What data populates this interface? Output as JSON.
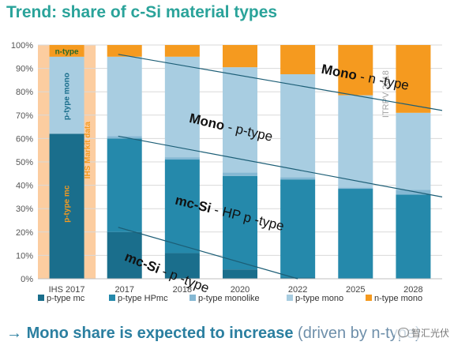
{
  "title": "Trend: share of c-Si material types",
  "footer": {
    "arrow": "→",
    "text_main": "Mono share is expected to increase",
    "text_paren": "(driven by n-type)"
  },
  "watermark": "智汇光伏",
  "colors": {
    "p-type mc": "#1a6e8c",
    "p-type HPmc": "#2589ab",
    "p-type monolike": "#85b8d3",
    "p-type mono": "#a8cde1",
    "n-type mono": "#f59a1f",
    "ihs_background": "#fccda0",
    "trend_line": "#1c5e76",
    "title": "#2aa39a"
  },
  "chart_data": {
    "type": "bar",
    "stacked": true,
    "categories": [
      "IHS 2017",
      "2017",
      "2018",
      "2020",
      "2022",
      "2025",
      "2028"
    ],
    "series": [
      {
        "name": "p-type mc",
        "values": [
          62,
          20,
          11,
          4,
          0.5,
          0,
          0
        ]
      },
      {
        "name": "p-type HPmc",
        "values": [
          0,
          40,
          40,
          40,
          42,
          38.5,
          36
        ]
      },
      {
        "name": "p-type monolike",
        "values": [
          0,
          1,
          1,
          1.5,
          1,
          0.5,
          2
        ]
      },
      {
        "name": "p-type mono",
        "values": [
          33,
          34,
          43,
          45,
          44,
          39.5,
          33
        ]
      },
      {
        "name": "n-type mono",
        "values": [
          5,
          5,
          5,
          9.5,
          12.5,
          21.5,
          29
        ]
      }
    ],
    "y_ticks": [
      "0%",
      "10%",
      "20%",
      "30%",
      "40%",
      "50%",
      "60%",
      "70%",
      "80%",
      "90%",
      "100%"
    ],
    "ylim": [
      0,
      100
    ],
    "grid": true,
    "legend_position": "bottom",
    "ihs_column_labels": {
      "top": "n-type",
      "mid": "p-type mono",
      "low": "p-type mc",
      "source": "IHS Markit data"
    },
    "vertical_annotation": "ITRPV 2018",
    "trend_lines": [
      {
        "label_bold": "Mono",
        "label_rest": " - n -type",
        "x_start": "2017",
        "y_start": 96,
        "x_end": "2028",
        "y_end": 72
      },
      {
        "label_bold": "mc-Si",
        "label_rest": " - HP p -type",
        "x_start": "2017",
        "y_start": 61,
        "x_end": "2028",
        "y_end": 35
      },
      {
        "label_bold": "mc-Si",
        "label_rest": " - p -type",
        "x_start": "2017",
        "y_start": 22,
        "x_end": "2022",
        "y_end": 0
      }
    ],
    "region_labels": [
      {
        "label_bold": "Mono",
        "label_rest": " - p-type"
      }
    ]
  }
}
